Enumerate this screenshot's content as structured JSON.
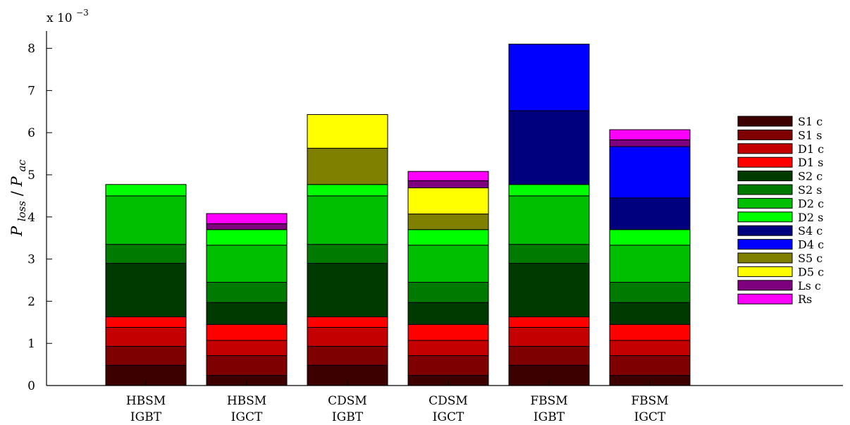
{
  "chart_data": {
    "type": "bar",
    "stacked": true,
    "multiplier_label": "x 10",
    "multiplier_exponent": "−3",
    "ylabel": {
      "main": "P",
      "main_sub": "loss",
      "sep": "/",
      "denom": "P",
      "denom_sub": "ac"
    },
    "ylim": [
      0,
      8.4
    ],
    "yticks": [
      "0",
      "1",
      "2",
      "3",
      "4",
      "5",
      "6",
      "7",
      "8"
    ],
    "categories": [
      {
        "line1": "HBSM",
        "line2": "IGBT"
      },
      {
        "line1": "HBSM",
        "line2": "IGCT"
      },
      {
        "line1": "CDSM",
        "line2": "IGBT"
      },
      {
        "line1": "CDSM",
        "line2": "IGCT"
      },
      {
        "line1": "FBSM",
        "line2": "IGBT"
      },
      {
        "line1": "FBSM",
        "line2": "IGCT"
      }
    ],
    "series": [
      {
        "name": "S1 c",
        "color": "#3d0000",
        "values": [
          0.48,
          0.24,
          0.48,
          0.24,
          0.48,
          0.24
        ]
      },
      {
        "name": "S1 s",
        "color": "#7f0000",
        "values": [
          0.45,
          0.47,
          0.45,
          0.47,
          0.45,
          0.47
        ]
      },
      {
        "name": "D1 c",
        "color": "#c40000",
        "values": [
          0.45,
          0.36,
          0.45,
          0.36,
          0.45,
          0.36
        ]
      },
      {
        "name": "D1 s",
        "color": "#ff0000",
        "values": [
          0.25,
          0.38,
          0.25,
          0.38,
          0.25,
          0.38
        ]
      },
      {
        "name": "S2 c",
        "color": "#003a00",
        "values": [
          1.27,
          0.52,
          1.27,
          0.52,
          1.27,
          0.52
        ]
      },
      {
        "name": "S2 s",
        "color": "#007a00",
        "values": [
          0.45,
          0.48,
          0.45,
          0.48,
          0.45,
          0.48
        ]
      },
      {
        "name": "D2 c",
        "color": "#00bf00",
        "values": [
          1.15,
          0.88,
          1.15,
          0.88,
          1.15,
          0.88
        ]
      },
      {
        "name": "D2 s",
        "color": "#00ff00",
        "values": [
          0.27,
          0.37,
          0.27,
          0.37,
          0.27,
          0.37
        ]
      },
      {
        "name": "S4 c",
        "color": "#00007f",
        "values": [
          0,
          0,
          0,
          0,
          1.75,
          0.75
        ]
      },
      {
        "name": "D4 c",
        "color": "#0000ff",
        "values": [
          0,
          0,
          0,
          0,
          1.58,
          1.22
        ]
      },
      {
        "name": "S5 c",
        "color": "#7f7f00",
        "values": [
          0,
          0,
          0.86,
          0.37,
          0,
          0
        ]
      },
      {
        "name": "D5 c",
        "color": "#ffff00",
        "values": [
          0,
          0,
          0.8,
          0.62,
          0,
          0
        ]
      },
      {
        "name": "Ls c",
        "color": "#7f007f",
        "values": [
          0,
          0.14,
          0,
          0.17,
          0,
          0.16
        ]
      },
      {
        "name": "Rs",
        "color": "#ff00ff",
        "values": [
          0,
          0.24,
          0,
          0.22,
          0,
          0.24
        ]
      }
    ]
  }
}
